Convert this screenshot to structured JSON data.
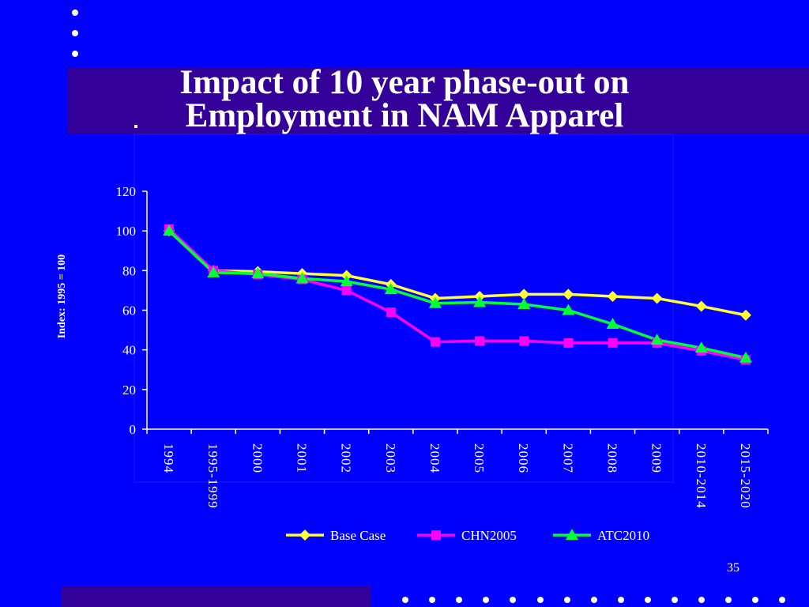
{
  "slide": {
    "title_line1": "Impact of 10 year phase-out on",
    "title_line2": "Employment in NAM Apparel",
    "page_number": "35"
  },
  "colors": {
    "background": "#0000ff",
    "band": "#330099",
    "text": "#ffffff",
    "base_case": "#ffff33",
    "chn2005": "#ff00ff",
    "atc2010": "#00ff33"
  },
  "chart_data": {
    "type": "line",
    "title": "",
    "xlabel": "",
    "ylabel": "Index: 1995 = 100",
    "ylim": [
      0,
      120
    ],
    "yticks": [
      0,
      20,
      40,
      60,
      80,
      100,
      120
    ],
    "grid": false,
    "legend": "bottom",
    "categories": [
      "1994",
      "1995-1999",
      "2000",
      "2001",
      "2002",
      "2003",
      "2004",
      "2005",
      "2006",
      "2007",
      "2008",
      "2009",
      "2010-2014",
      "2015-2020"
    ],
    "series": [
      {
        "name": "Base Case",
        "marker": "diamond",
        "color": "#ffff33",
        "values": [
          100,
          80,
          79.5,
          78.5,
          77.5,
          73,
          66,
          67,
          68,
          68,
          67,
          66,
          62,
          57.5
        ]
      },
      {
        "name": "CHN2005",
        "marker": "square",
        "color": "#ff00ff",
        "values": [
          101,
          80,
          78,
          75.5,
          70,
          59,
          44,
          44.5,
          44.5,
          43.5,
          43.5,
          43.5,
          39.5,
          35
        ]
      },
      {
        "name": "ATC2010",
        "marker": "triangle",
        "color": "#00ff33",
        "values": [
          100,
          79,
          78.5,
          76,
          74.5,
          70.5,
          63.5,
          64,
          63,
          60,
          53,
          45,
          41,
          36
        ]
      }
    ]
  }
}
